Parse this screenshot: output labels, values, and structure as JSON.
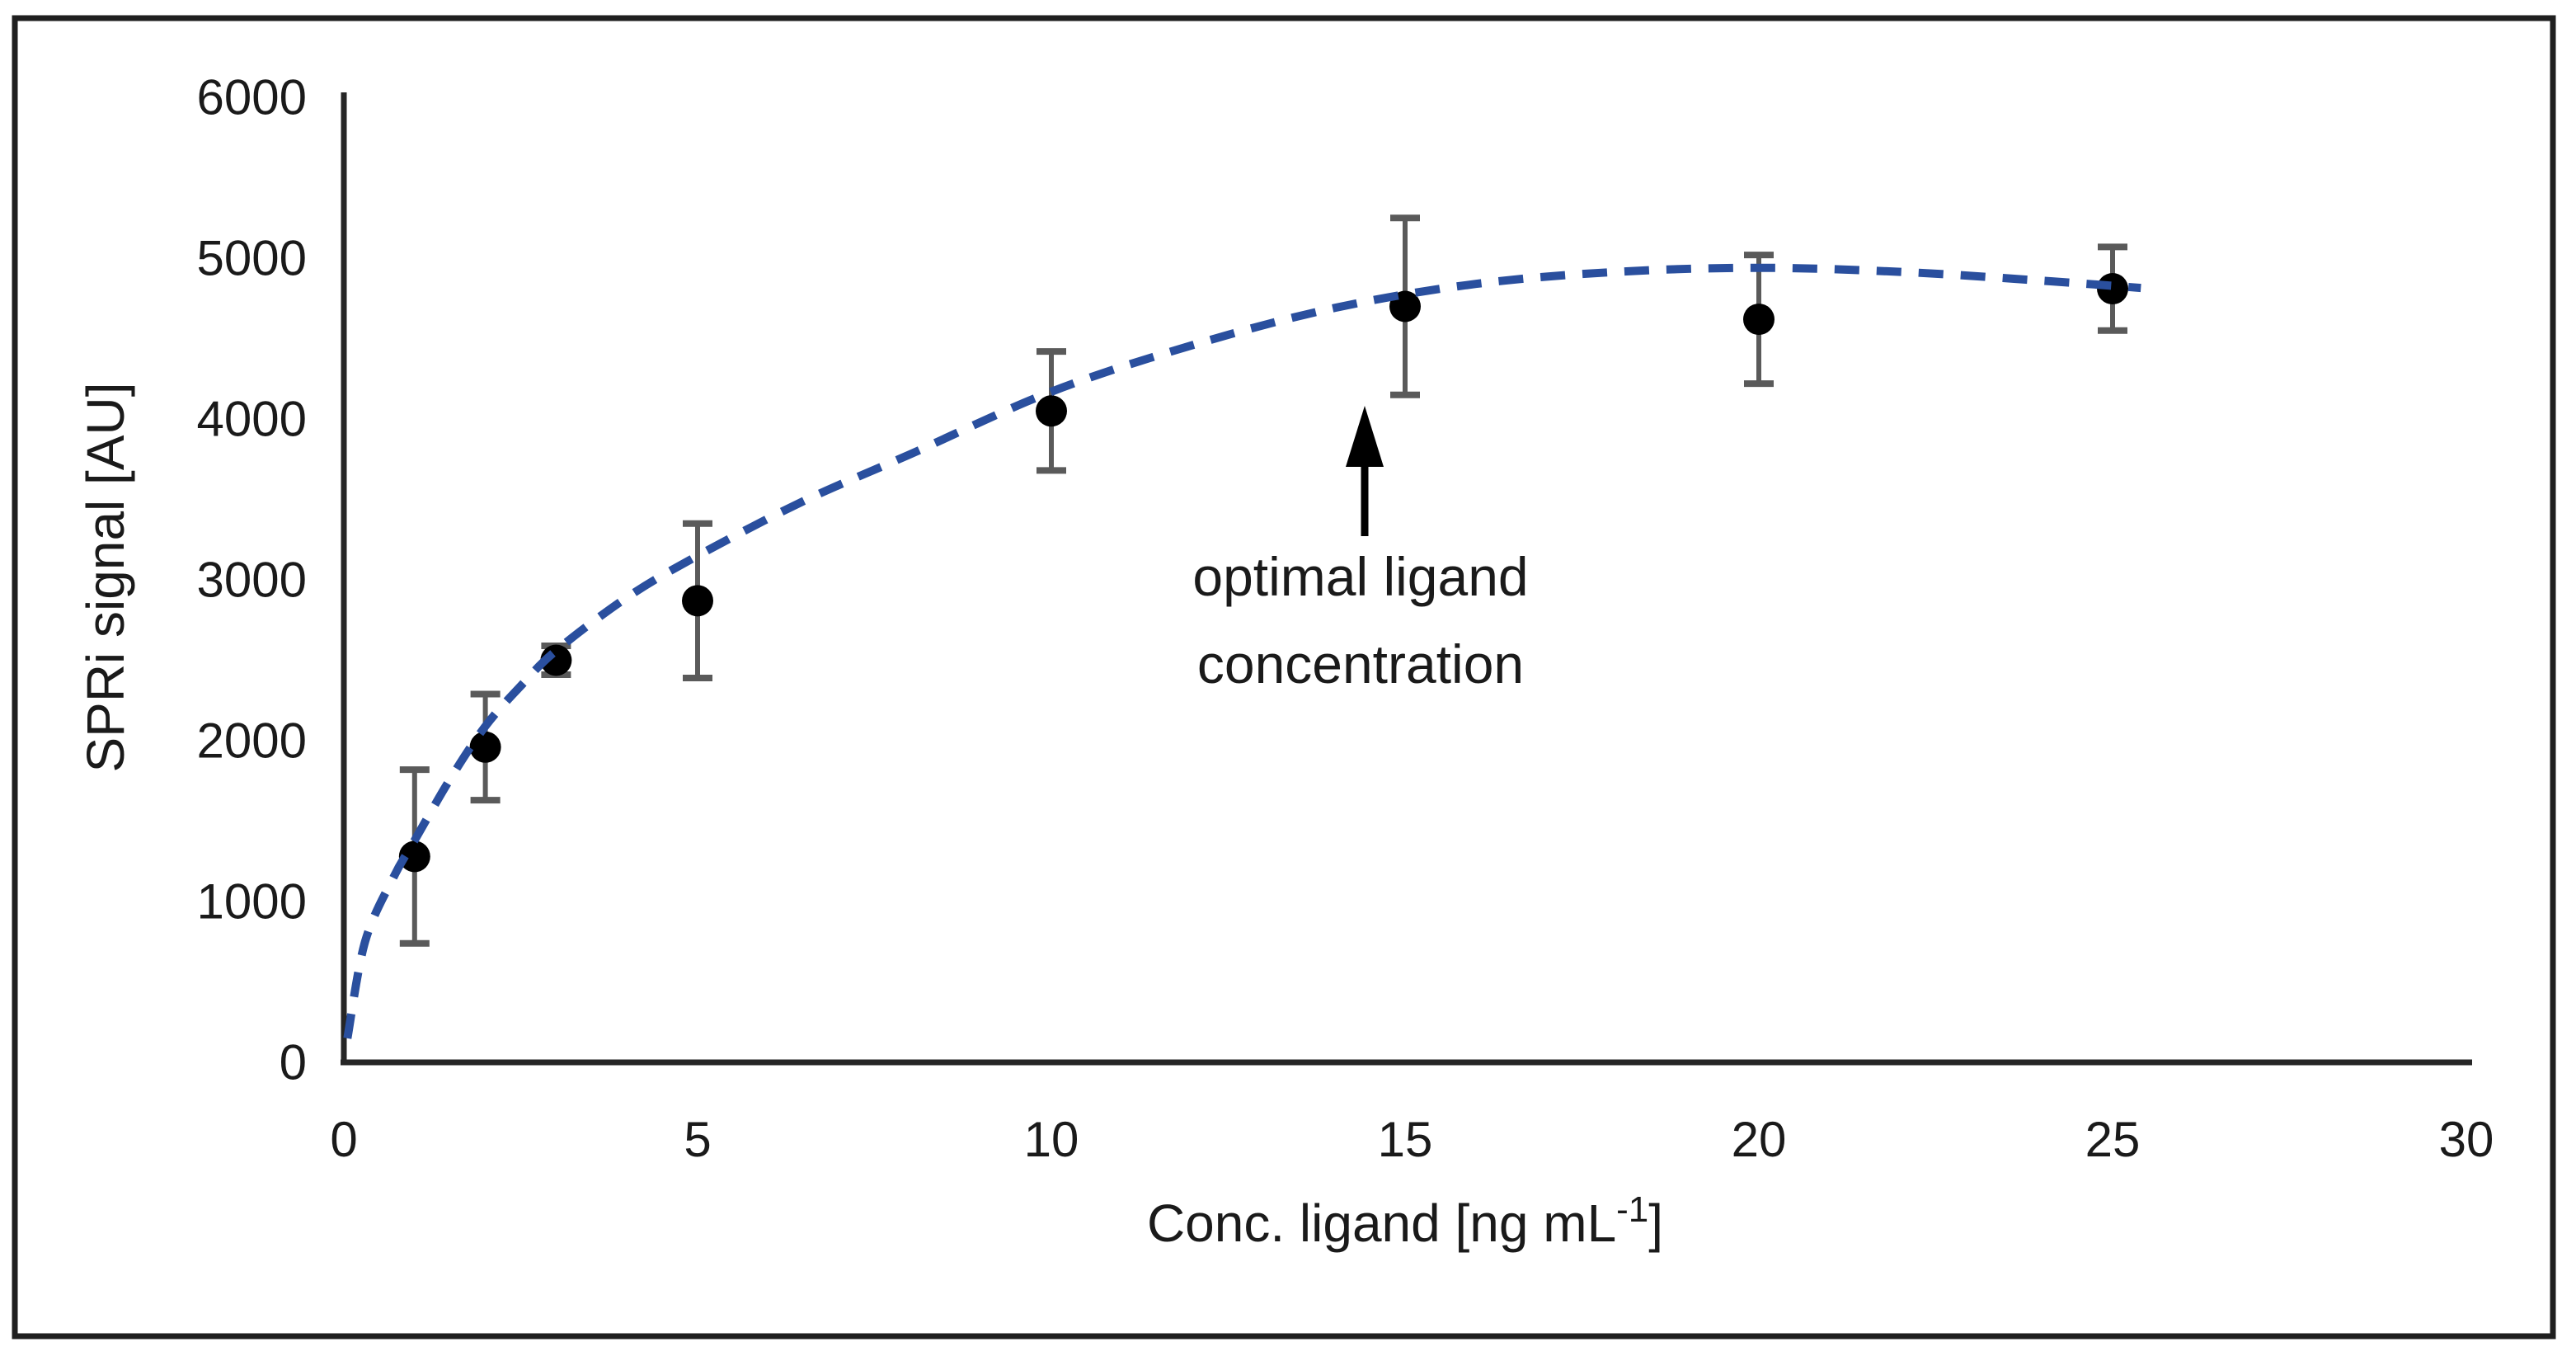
{
  "figure": {
    "background": "#ffffff",
    "border_color": "#1f1f1f",
    "description": "Scatter plot of SPRi signal versus ligand concentration with error bars, dashed saturation trendline and annotation"
  },
  "chart_data": {
    "type": "scatter",
    "title": "",
    "xlabel": "Conc. ligand [ng mL⁻¹]",
    "xlabel_parts": {
      "prefix": "Conc. ligand [ng mL",
      "superscript": "-1",
      "suffix": "]"
    },
    "ylabel": "SPRi signal [AU]",
    "xlim": [
      0,
      30
    ],
    "ylim": [
      0,
      6000
    ],
    "x_ticks": [
      "0",
      "5",
      "10",
      "15",
      "20",
      "25",
      "30"
    ],
    "y_ticks": [
      "0",
      "1000",
      "2000",
      "3000",
      "4000",
      "5000",
      "6000"
    ],
    "grid": false,
    "legend": false,
    "series": [
      {
        "name": "SPRi signal",
        "marker": "filled-black-circle",
        "x": [
          1,
          2,
          3,
          5,
          10,
          15,
          20,
          25
        ],
        "y": [
          1280,
          1960,
          2500,
          2870,
          4050,
          4700,
          4620,
          4810
        ],
        "yerr": [
          540,
          330,
          90,
          480,
          370,
          550,
          400,
          260
        ]
      }
    ],
    "trendline": {
      "style": "dashed",
      "points": [
        [
          0.05,
          150
        ],
        [
          0.3,
          750
        ],
        [
          0.7,
          1150
        ],
        [
          1,
          1380
        ],
        [
          1.5,
          1760
        ],
        [
          2,
          2090
        ],
        [
          2.5,
          2340
        ],
        [
          3,
          2560
        ],
        [
          4,
          2890
        ],
        [
          5,
          3150
        ],
        [
          6.5,
          3490
        ],
        [
          8,
          3780
        ],
        [
          10,
          4170
        ],
        [
          12,
          4460
        ],
        [
          14,
          4690
        ],
        [
          16,
          4840
        ],
        [
          18,
          4915
        ],
        [
          20,
          4940
        ],
        [
          22,
          4915
        ],
        [
          24,
          4860
        ],
        [
          25.4,
          4815
        ]
      ]
    },
    "annotation": {
      "line1": "optimal ligand",
      "line2": "concentration",
      "points_to": "data point at x = 15"
    },
    "colors": {
      "trendline": "#2a4f9e",
      "marker": "#000000",
      "error_bar": "#5a5a5a",
      "axis": "#262626",
      "text": "#1a1a1a",
      "annotation_arrow": "#000000",
      "border": "#1f1f1f"
    }
  }
}
